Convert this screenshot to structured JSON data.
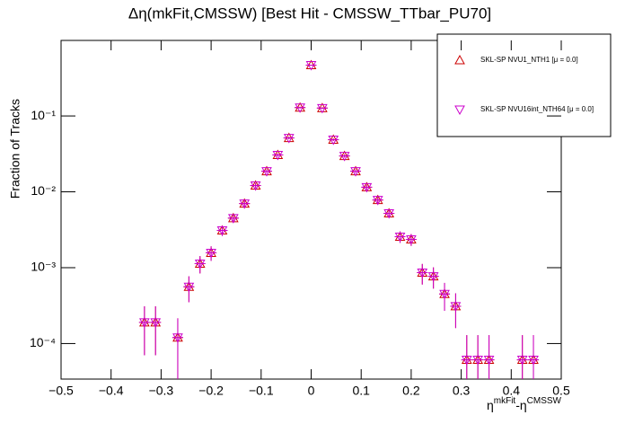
{
  "chart_data": {
    "type": "scatter",
    "title": "Δη(mkFit,CMSSW) [Best Hit - CMSSW_TTbar_PU70]",
    "xlabel": [
      "η",
      "mkFit",
      "-η",
      "CMSSW"
    ],
    "ylabel": "Fraction of Tracks",
    "log_y": true,
    "legend": "top-right",
    "xlim": [
      -0.5,
      0.5
    ],
    "ylim": [
      3.4e-05,
      0.99
    ],
    "xticks": [
      {
        "value": -0.5,
        "label": "−0.5"
      },
      {
        "value": -0.4,
        "label": "−0.4"
      },
      {
        "value": -0.3,
        "label": "−0.3"
      },
      {
        "value": -0.2,
        "label": "−0.2"
      },
      {
        "value": -0.1,
        "label": "−0.1"
      },
      0,
      0.1,
      0.2,
      0.3,
      0.4,
      0.5
    ],
    "yticks": [
      {
        "value": 0.0001,
        "label": "10⁻⁴"
      },
      {
        "value": 0.001,
        "label": "10⁻³"
      },
      {
        "value": 0.01,
        "label": "10⁻²"
      },
      {
        "value": 0.1,
        "label": "10⁻¹"
      }
    ],
    "x": [
      -0.3333,
      -0.3111,
      -0.2667,
      -0.2444,
      -0.2222,
      -0.2,
      -0.1778,
      -0.1556,
      -0.1333,
      -0.1111,
      -0.0889,
      -0.0667,
      -0.0444,
      -0.0222,
      0,
      0.0222,
      0.0444,
      0.0667,
      0.0889,
      0.1111,
      0.1333,
      0.1556,
      0.1778,
      0.2,
      0.2222,
      0.2444,
      0.2667,
      0.2889,
      0.3111,
      0.3333,
      0.3556,
      0.4222,
      0.4444
    ],
    "series": [
      {
        "name": "SKL-SP NVU1_NTH1 [μ =  0.0]",
        "color": "#cc0000",
        "marker": "triangle-up",
        "values": [
          0.00019,
          0.00019,
          0.00012,
          0.00056,
          0.00113,
          0.00157,
          0.0031,
          0.0045,
          0.007,
          0.0121,
          0.0187,
          0.0306,
          0.0513,
          0.129,
          0.467,
          0.127,
          0.0486,
          0.0297,
          0.0187,
          0.0115,
          0.0078,
          0.0052,
          0.00256,
          0.00236,
          0.00086,
          0.00077,
          0.00045,
          0.00031,
          6.1e-05,
          6.1e-05,
          6.1e-05,
          6.1e-05,
          6.1e-05
        ],
        "errors": [
          0.00012,
          0.00012,
          9.5e-05,
          0.00021,
          0.00029,
          0.00034,
          0.00048,
          0.00058,
          0.00073,
          0.00096,
          0.0012,
          0.0015,
          0.002,
          0.0031,
          0.0059,
          0.0031,
          0.0019,
          0.0015,
          0.0012,
          0.00093,
          0.00077,
          0.00063,
          0.00044,
          0.00042,
          0.00026,
          0.00024,
          0.00018,
          0.00015,
          6.8e-05,
          6.8e-05,
          6.8e-05,
          6.8e-05,
          6.8e-05
        ]
      },
      {
        "name": "SKL-SP NVU16int_NTH64 [μ =  0.0]",
        "color": "#cc00cc",
        "marker": "triangle-down",
        "values": [
          0.00019,
          0.00019,
          0.00012,
          0.00056,
          0.00113,
          0.00157,
          0.0031,
          0.0045,
          0.007,
          0.0121,
          0.0187,
          0.0306,
          0.0513,
          0.129,
          0.467,
          0.127,
          0.0486,
          0.0297,
          0.0187,
          0.0115,
          0.0078,
          0.0052,
          0.00256,
          0.00236,
          0.00086,
          0.00077,
          0.00045,
          0.00031,
          6.1e-05,
          6.1e-05,
          6.1e-05,
          6.1e-05,
          6.1e-05
        ],
        "errors": [
          0.00012,
          0.00012,
          9.5e-05,
          0.00021,
          0.00029,
          0.00034,
          0.00048,
          0.00058,
          0.00073,
          0.00096,
          0.0012,
          0.0015,
          0.002,
          0.0031,
          0.0059,
          0.0031,
          0.0019,
          0.0015,
          0.0012,
          0.00093,
          0.00077,
          0.00063,
          0.00044,
          0.00042,
          0.00026,
          0.00024,
          0.00018,
          0.00015,
          6.8e-05,
          6.8e-05,
          6.8e-05,
          6.8e-05,
          6.8e-05
        ]
      }
    ]
  }
}
